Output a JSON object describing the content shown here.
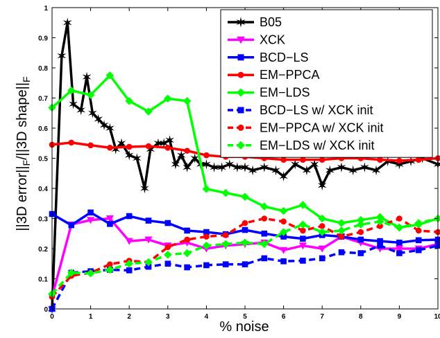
{
  "chart_data": {
    "type": "line",
    "xlabel": "% noise",
    "ylabel": "||3D error||",
    "ylabel_sub1": "F",
    "ylabel_mid": "/||3D shape||",
    "ylabel_sub2": "F",
    "xlim": [
      0,
      10
    ],
    "ylim": [
      0,
      1
    ],
    "xticks": [
      "0",
      "1",
      "2",
      "3",
      "4",
      "5",
      "6",
      "7",
      "8",
      "9",
      "10"
    ],
    "yticks": [
      "0",
      "0.1",
      "0.2",
      "0.3",
      "0.4",
      "0.5",
      "0.6",
      "0.7",
      "0.8",
      "0.9",
      "1"
    ],
    "grid": false,
    "legend_position": "top-right",
    "series": [
      {
        "name": "B05",
        "color": "#000000",
        "dash": "solid",
        "marker": "star",
        "x": [
          0,
          0.25,
          0.4,
          0.55,
          0.75,
          0.9,
          1.05,
          1.2,
          1.35,
          1.5,
          1.65,
          1.8,
          2.0,
          2.2,
          2.4,
          2.55,
          2.75,
          2.9,
          3.05,
          3.2,
          3.35,
          3.5,
          3.7,
          3.85,
          4.0,
          4.2,
          4.4,
          4.6,
          4.8,
          5.0,
          5.2,
          5.5,
          5.8,
          6.0,
          6.3,
          6.6,
          6.8,
          7.0,
          7.2,
          7.5,
          7.8,
          8.1,
          8.4,
          8.7,
          9.0,
          9.3,
          9.6,
          10.0
        ],
        "y": [
          0.0,
          0.84,
          0.95,
          0.68,
          0.66,
          0.77,
          0.65,
          0.63,
          0.61,
          0.6,
          0.53,
          0.55,
          0.51,
          0.5,
          0.4,
          0.53,
          0.55,
          0.55,
          0.56,
          0.48,
          0.51,
          0.47,
          0.5,
          0.48,
          0.48,
          0.47,
          0.47,
          0.48,
          0.47,
          0.47,
          0.46,
          0.47,
          0.46,
          0.44,
          0.48,
          0.46,
          0.48,
          0.41,
          0.46,
          0.47,
          0.46,
          0.47,
          0.46,
          0.49,
          0.48,
          0.49,
          0.5,
          0.48
        ]
      },
      {
        "name": "XCK",
        "color": "#ff00ff",
        "dash": "solid",
        "marker": "triangle-down",
        "x": [
          0,
          0.5,
          1.0,
          1.5,
          2.0,
          2.5,
          3.0,
          3.5,
          4.0,
          4.5,
          5.0,
          5.5,
          6.0,
          6.5,
          7.0,
          7.5,
          8.0,
          8.5,
          9.0,
          9.5,
          10.0
        ],
        "y": [
          0.04,
          0.28,
          0.295,
          0.3,
          0.225,
          0.23,
          0.21,
          0.22,
          0.2,
          0.21,
          0.215,
          0.22,
          0.195,
          0.21,
          0.2,
          0.24,
          0.22,
          0.2,
          0.2,
          0.2,
          0.215
        ]
      },
      {
        "name": "BCD−LS",
        "color": "#0000ff",
        "dash": "solid",
        "marker": "square",
        "x": [
          0,
          0.5,
          1.0,
          1.5,
          2.0,
          2.5,
          3.0,
          3.5,
          4.0,
          4.5,
          5.0,
          5.5,
          6.0,
          6.5,
          7.0,
          7.5,
          8.0,
          8.5,
          9.0,
          9.5,
          10.0
        ],
        "y": [
          0.315,
          0.278,
          0.32,
          0.282,
          0.308,
          0.293,
          0.285,
          0.26,
          0.255,
          0.248,
          0.262,
          0.25,
          0.24,
          0.233,
          0.245,
          0.24,
          0.23,
          0.225,
          0.22,
          0.228,
          0.23
        ]
      },
      {
        "name": "EM−PPCA",
        "color": "#ff0000",
        "dash": "solid",
        "marker": "circle",
        "x": [
          0,
          0.5,
          1.0,
          1.5,
          2.0,
          2.5,
          3.0,
          3.5,
          4.0,
          4.5,
          5.0,
          5.5,
          6.0,
          6.5,
          7.0,
          7.5,
          8.0,
          8.5,
          9.0,
          9.5,
          10.0
        ],
        "y": [
          0.545,
          0.552,
          0.543,
          0.535,
          0.538,
          0.54,
          0.535,
          0.525,
          0.51,
          0.505,
          0.505,
          0.5,
          0.495,
          0.495,
          0.495,
          0.5,
          0.5,
          0.495,
          0.492,
          0.495,
          0.5
        ]
      },
      {
        "name": "EM−LDS",
        "color": "#00ff00",
        "dash": "solid",
        "marker": "diamond",
        "x": [
          0,
          0.5,
          1.0,
          1.5,
          2.0,
          2.5,
          3.0,
          3.5,
          4.0,
          4.5,
          5.0,
          5.5,
          6.0,
          6.5,
          7.0,
          7.5,
          8.0,
          8.5,
          9.0,
          9.5,
          10.0
        ],
        "y": [
          0.668,
          0.725,
          0.71,
          0.775,
          0.69,
          0.655,
          0.698,
          0.69,
          0.398,
          0.385,
          0.372,
          0.34,
          0.325,
          0.345,
          0.3,
          0.285,
          0.295,
          0.305,
          0.27,
          0.28,
          0.3
        ]
      },
      {
        "name": "BCD−LS w/ XCK init",
        "color": "#0000ff",
        "dash": "dashed",
        "marker": "square",
        "x": [
          0,
          0.5,
          1.0,
          1.5,
          2.0,
          2.5,
          3.0,
          3.5,
          4.0,
          4.5,
          5.0,
          5.5,
          6.0,
          6.5,
          7.0,
          7.5,
          8.0,
          8.5,
          9.0,
          9.5,
          10.0
        ],
        "y": [
          0.0,
          0.12,
          0.125,
          0.13,
          0.128,
          0.14,
          0.15,
          0.138,
          0.145,
          0.148,
          0.148,
          0.168,
          0.158,
          0.16,
          0.168,
          0.188,
          0.185,
          0.21,
          0.185,
          0.195,
          0.21
        ]
      },
      {
        "name": "EM−PPCA w/ XCK init",
        "color": "#ff0000",
        "dash": "dashed",
        "marker": "circle",
        "x": [
          0,
          0.5,
          1.0,
          1.5,
          2.0,
          2.5,
          3.0,
          3.5,
          4.0,
          4.5,
          5.0,
          5.5,
          6.0,
          6.5,
          7.0,
          7.5,
          8.0,
          8.5,
          9.0,
          9.5,
          10.0
        ],
        "y": [
          0.04,
          0.11,
          0.12,
          0.148,
          0.16,
          0.155,
          0.205,
          0.23,
          0.24,
          0.245,
          0.285,
          0.3,
          0.29,
          0.26,
          0.275,
          0.24,
          0.255,
          0.275,
          0.3,
          0.26,
          0.255
        ]
      },
      {
        "name": "EM−LDS w/ XCK init",
        "color": "#00ff00",
        "dash": "dashed",
        "marker": "diamond",
        "x": [
          0,
          0.5,
          1.0,
          1.5,
          2.0,
          2.5,
          3.0,
          3.5,
          4.0,
          4.5,
          5.0,
          5.5,
          6.0,
          6.5,
          7.0,
          7.5,
          8.0,
          8.5,
          9.0,
          9.5,
          10.0
        ],
        "y": [
          0.05,
          0.12,
          0.118,
          0.13,
          0.15,
          0.155,
          0.18,
          0.185,
          0.21,
          0.215,
          0.22,
          0.215,
          0.255,
          0.28,
          0.255,
          0.26,
          0.28,
          0.29,
          0.27,
          0.285,
          0.3
        ]
      }
    ]
  }
}
